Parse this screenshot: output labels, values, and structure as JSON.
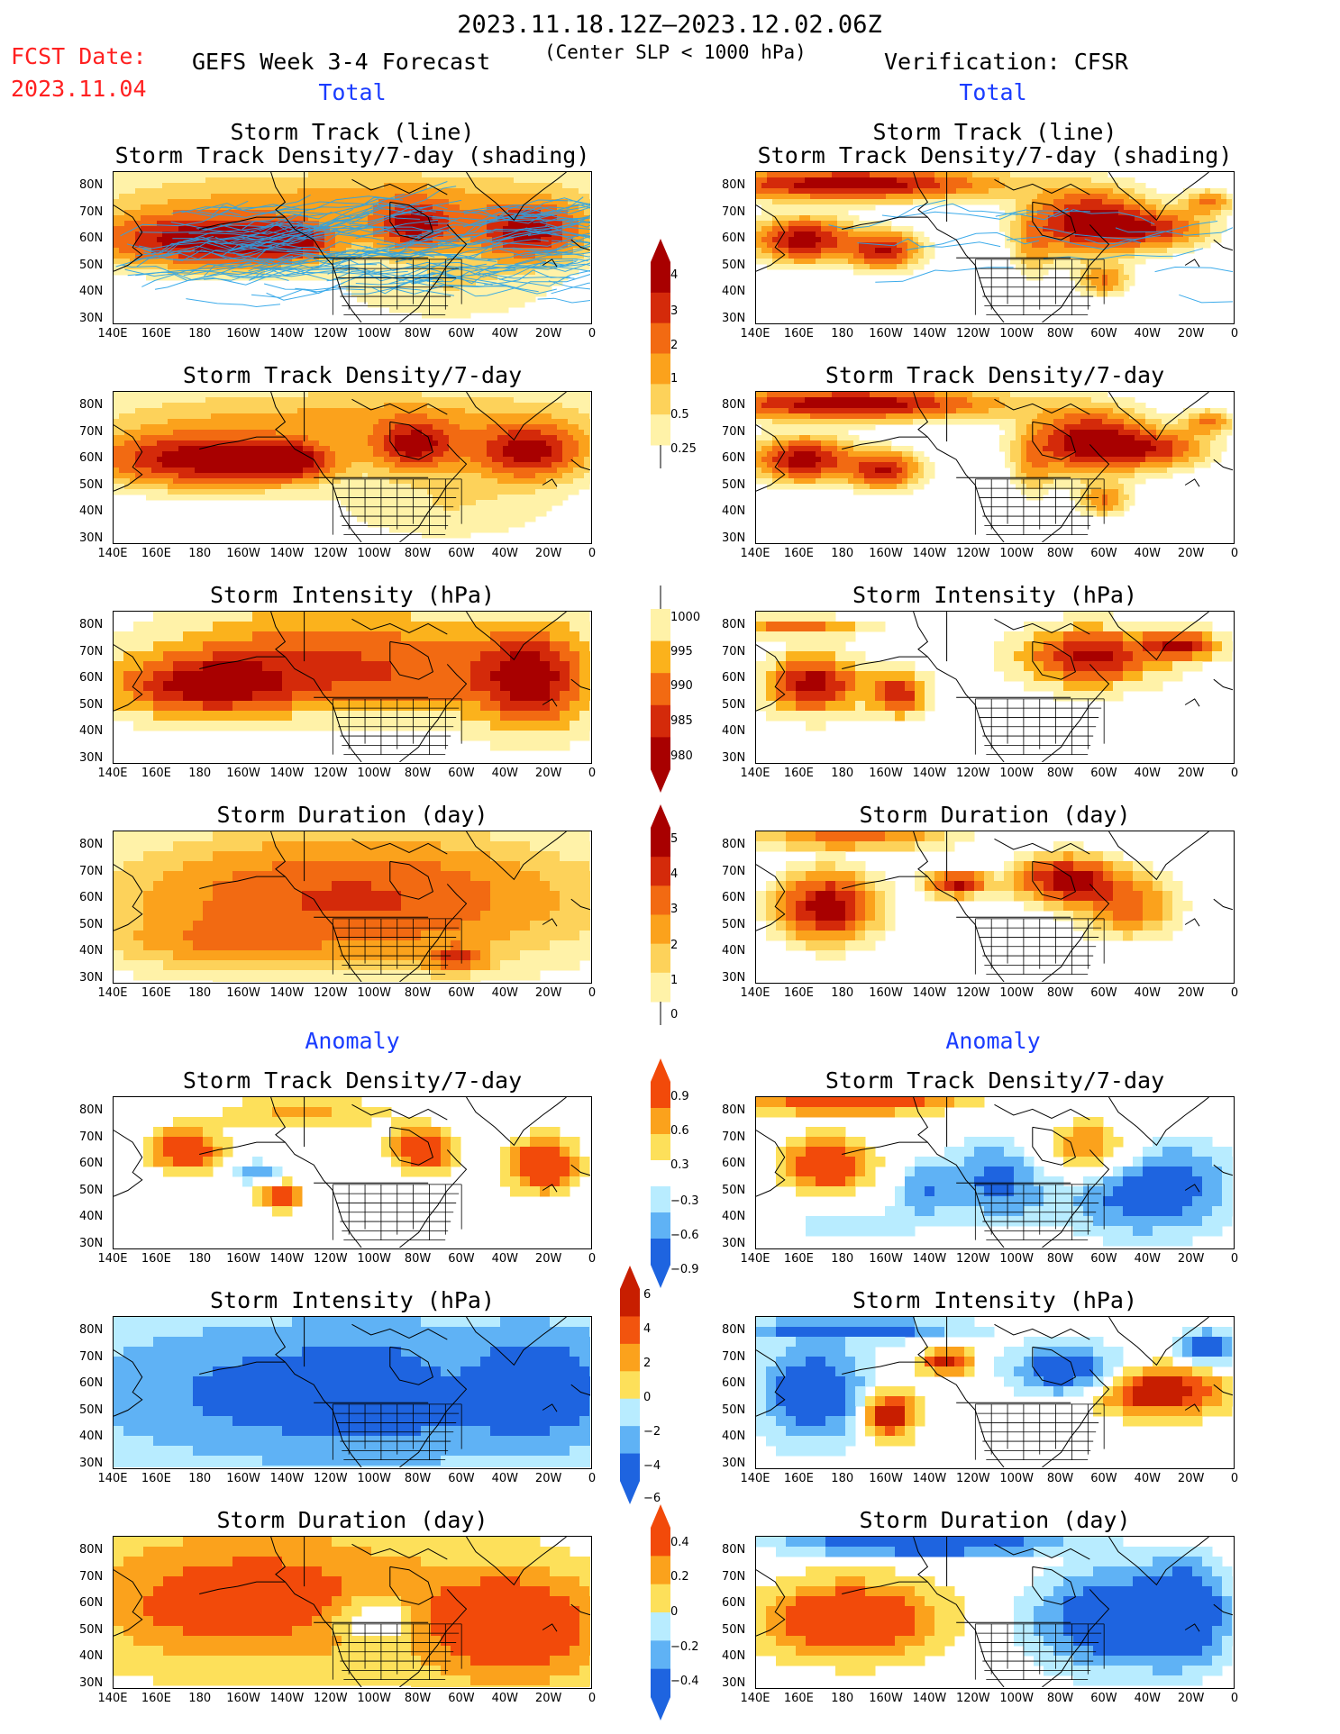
{
  "header": {
    "period": "2023.11.18.12Z—2023.12.02.06Z",
    "fcst_label": "FCST Date:",
    "fcst_date": "2023.11.04",
    "model": "GEFS Week 3-4 Forecast",
    "criterion": "(Center SLP < 1000 hPa)",
    "verification": "Verification: CFSR"
  },
  "sections": {
    "total": "Total",
    "anomaly": "Anomaly"
  },
  "axes": {
    "lat": [
      "80N",
      "70N",
      "60N",
      "50N",
      "40N",
      "30N"
    ],
    "lon": [
      "140E",
      "160E",
      "180",
      "160W",
      "140W",
      "120W",
      "100W",
      "80W",
      "60W",
      "40W",
      "20W",
      "0"
    ]
  },
  "panels": {
    "r1_title_a": "Storm Track (line)",
    "r1_title_b": "Storm Track Density/7-day (shading)",
    "r2": "Storm Track Density/7-day",
    "r3": "Storm Intensity (hPa)",
    "r4": "Storm Duration (day)",
    "r5": "Storm Track Density/7-day",
    "r6": "Storm Intensity (hPa)",
    "r7": "Storm Duration (day)"
  },
  "colorbars": {
    "density": {
      "labels": [
        "4",
        "3",
        "2",
        "1",
        "0.5",
        "0.25"
      ],
      "colors": [
        "#a80000",
        "#d42a0a",
        "#f26a12",
        "#fba21c",
        "#fdd25a",
        "#fff2a8"
      ]
    },
    "intensity": {
      "labels": [
        "1000",
        "995",
        "990",
        "985",
        "980"
      ],
      "colors": [
        "#fff2a8",
        "#fbb21c",
        "#f26a12",
        "#d42a0a",
        "#a80000"
      ]
    },
    "duration": {
      "labels": [
        "5",
        "4",
        "3",
        "2",
        "1",
        "0"
      ],
      "colors": [
        "#a80000",
        "#d42a0a",
        "#f26a12",
        "#fba21c",
        "#fdd25a",
        "#fff2a8"
      ]
    },
    "density_anom": {
      "labels": [
        "0.9",
        "0.6",
        "0.3",
        "−0.3",
        "−0.6",
        "−0.9"
      ],
      "colors": [
        "#f24a0a",
        "#fba21c",
        "#fde05a",
        "#ffffff",
        "#b8ecff",
        "#5fb2f5",
        "#1e64e0"
      ]
    },
    "intensity_anom": {
      "labels": [
        "6",
        "4",
        "2",
        "0",
        "−2",
        "−4",
        "−6"
      ],
      "colors": [
        "#c81e00",
        "#f2540e",
        "#fba21c",
        "#fde05a",
        "#b8ecff",
        "#5fb2f5",
        "#1e64e0"
      ]
    },
    "duration_anom": {
      "labels": [
        "0.4",
        "0.2",
        "0",
        "−0.2",
        "−0.4"
      ],
      "colors": [
        "#f24a0a",
        "#fba21c",
        "#fde05a",
        "#b8ecff",
        "#5fb2f5",
        "#1e64e0"
      ]
    }
  }
}
